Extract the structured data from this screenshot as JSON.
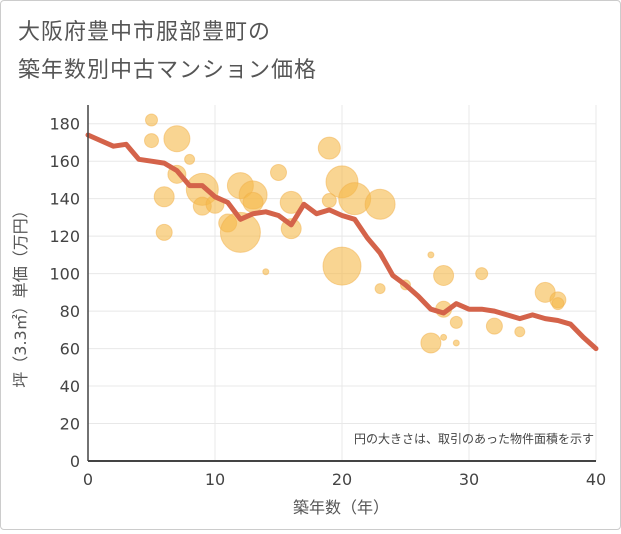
{
  "title_lines": [
    "大阪府豊中市服部豊町の",
    "築年数別中古マンション価格"
  ],
  "chart_data": {
    "type": "scatter",
    "title": "大阪府豊中市服部豊町の築年数別中古マンション価格",
    "xlabel": "築年数（年）",
    "ylabel": "坪（3.3㎡）単価（万円）",
    "xlim": [
      0,
      40
    ],
    "ylim": [
      0,
      190
    ],
    "xticks": [
      0,
      10,
      20,
      30,
      40
    ],
    "yticks": [
      0,
      20,
      40,
      60,
      80,
      100,
      120,
      140,
      160,
      180
    ],
    "grid": true,
    "annotation": "円の大きさは、取引のあった物件面積を示す",
    "colors": {
      "bubble": "#f5b94a",
      "line": "#d4634a",
      "grid": "#e8e8e8",
      "axis": "#444444"
    },
    "scatter": [
      {
        "x": 5,
        "y": 182,
        "s": 6
      },
      {
        "x": 5,
        "y": 171,
        "s": 7
      },
      {
        "x": 6,
        "y": 141,
        "s": 10
      },
      {
        "x": 6,
        "y": 122,
        "s": 8
      },
      {
        "x": 7,
        "y": 172,
        "s": 13
      },
      {
        "x": 7,
        "y": 153,
        "s": 9
      },
      {
        "x": 8,
        "y": 161,
        "s": 5
      },
      {
        "x": 9,
        "y": 145,
        "s": 16
      },
      {
        "x": 9,
        "y": 136,
        "s": 9
      },
      {
        "x": 10,
        "y": 137,
        "s": 9
      },
      {
        "x": 11,
        "y": 127,
        "s": 9
      },
      {
        "x": 12,
        "y": 122,
        "s": 20
      },
      {
        "x": 12,
        "y": 147,
        "s": 13
      },
      {
        "x": 13,
        "y": 142,
        "s": 14
      },
      {
        "x": 13,
        "y": 138,
        "s": 10
      },
      {
        "x": 14,
        "y": 101,
        "s": 3
      },
      {
        "x": 15,
        "y": 154,
        "s": 8
      },
      {
        "x": 16,
        "y": 138,
        "s": 11
      },
      {
        "x": 16,
        "y": 124,
        "s": 10
      },
      {
        "x": 19,
        "y": 167,
        "s": 11
      },
      {
        "x": 19,
        "y": 139,
        "s": 7
      },
      {
        "x": 20,
        "y": 149,
        "s": 16
      },
      {
        "x": 20,
        "y": 104,
        "s": 19
      },
      {
        "x": 21,
        "y": 140,
        "s": 16
      },
      {
        "x": 23,
        "y": 137,
        "s": 15
      },
      {
        "x": 23,
        "y": 92,
        "s": 5
      },
      {
        "x": 25,
        "y": 94,
        "s": 5
      },
      {
        "x": 27,
        "y": 110,
        "s": 3
      },
      {
        "x": 27,
        "y": 63,
        "s": 10
      },
      {
        "x": 28,
        "y": 99,
        "s": 10
      },
      {
        "x": 28,
        "y": 81,
        "s": 8
      },
      {
        "x": 28,
        "y": 66,
        "s": 3
      },
      {
        "x": 29,
        "y": 74,
        "s": 6
      },
      {
        "x": 29,
        "y": 63,
        "s": 3
      },
      {
        "x": 31,
        "y": 100,
        "s": 6
      },
      {
        "x": 32,
        "y": 72,
        "s": 8
      },
      {
        "x": 34,
        "y": 69,
        "s": 5
      },
      {
        "x": 36,
        "y": 90,
        "s": 10
      },
      {
        "x": 37,
        "y": 86,
        "s": 8
      },
      {
        "x": 37,
        "y": 84,
        "s": 6
      }
    ],
    "line": {
      "x": [
        0,
        1,
        2,
        3,
        4,
        5,
        6,
        7,
        8,
        9,
        10,
        11,
        12,
        13,
        14,
        15,
        16,
        17,
        18,
        19,
        20,
        21,
        22,
        23,
        24,
        25,
        26,
        27,
        28,
        29,
        30,
        31,
        32,
        33,
        34,
        35,
        36,
        37,
        38,
        39,
        40
      ],
      "y": [
        174,
        171,
        168,
        169,
        161,
        160,
        159,
        155,
        147,
        147,
        141,
        138,
        129,
        132,
        133,
        131,
        126,
        137,
        132,
        134,
        131,
        129,
        119,
        111,
        99,
        94,
        88,
        81,
        79,
        84,
        81,
        81,
        80,
        78,
        76,
        78,
        76,
        75,
        73,
        66,
        60
      ]
    }
  }
}
